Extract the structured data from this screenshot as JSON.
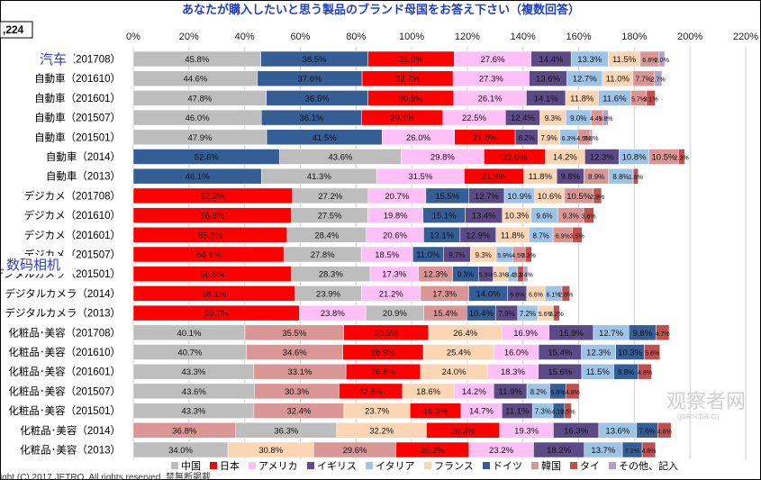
{
  "header": {
    "edge_label": ",224"
  },
  "chart_data": {
    "type": "bar",
    "orientation": "horizontal-stacked",
    "title": "あなたが購入したいと思う製品のブランド母国をお答え下さい（複数回答）",
    "xlim": [
      0,
      220
    ],
    "xticks": [
      "0%",
      "20%",
      "40%",
      "60%",
      "80%",
      "100%",
      "120%",
      "140%",
      "160%",
      "180%",
      "200%",
      "220%"
    ],
    "xtick_values": [
      0,
      20,
      40,
      60,
      80,
      100,
      120,
      140,
      160,
      180,
      200,
      220
    ],
    "grid": true,
    "legend_position": "bottom",
    "series": [
      {
        "name": "中国",
        "color": "#bdbdbd"
      },
      {
        "name": "日本",
        "color": "#ff0000"
      },
      {
        "name": "アメリカ",
        "color": "#ffbff7"
      },
      {
        "name": "イギリス",
        "color": "#5c4a86"
      },
      {
        "name": "イタリア",
        "color": "#9dc3e6"
      },
      {
        "name": "フランス",
        "color": "#fcd5b4"
      },
      {
        "name": "ドイツ",
        "color": "#355e96"
      },
      {
        "name": "韓国",
        "color": "#d99694"
      },
      {
        "name": "タイ",
        "color": "#c0504d"
      },
      {
        "name": "その他、記入",
        "color": "#b3a2c7"
      }
    ],
    "rows": [
      {
        "label": "汽车（201708）",
        "segments": [
          [
            "中国",
            45.8
          ],
          [
            "ドイツ",
            38.5
          ],
          [
            "日本",
            31.0
          ],
          [
            "アメリカ",
            27.6
          ],
          [
            "イギリス",
            14.4
          ],
          [
            "イタリア",
            13.3
          ],
          [
            "フランス",
            11.5
          ],
          [
            "韓国",
            6.8
          ],
          [
            "その他、記入",
            2.0
          ]
        ]
      },
      {
        "label": "自動車（201610）",
        "segments": [
          [
            "中国",
            44.6
          ],
          [
            "ドイツ",
            37.6
          ],
          [
            "日本",
            32.7
          ],
          [
            "アメリカ",
            27.3
          ],
          [
            "イギリス",
            13.6
          ],
          [
            "イタリア",
            12.7
          ],
          [
            "フランス",
            11.0
          ],
          [
            "韓国",
            7.7
          ],
          [
            "その他、記入",
            2.7
          ]
        ]
      },
      {
        "label": "自動車（201601）",
        "segments": [
          [
            "中国",
            47.8
          ],
          [
            "ドイツ",
            36.5
          ],
          [
            "日本",
            30.8
          ],
          [
            "アメリカ",
            26.1
          ],
          [
            "イギリス",
            14.1
          ],
          [
            "フランス",
            11.8
          ],
          [
            "イタリア",
            11.6
          ],
          [
            "韓国",
            5.7
          ],
          [
            "タイ",
            3.1
          ]
        ]
      },
      {
        "label": "自動車（201507）",
        "segments": [
          [
            "中国",
            46.0
          ],
          [
            "ドイツ",
            36.1
          ],
          [
            "日本",
            29.1
          ],
          [
            "アメリカ",
            22.5
          ],
          [
            "イギリス",
            12.4
          ],
          [
            "フランス",
            9.3
          ],
          [
            "イタリア",
            9.0
          ],
          [
            "韓国",
            4.4
          ],
          [
            "その他、記入",
            1.8
          ]
        ]
      },
      {
        "label": "自動車（201501）",
        "segments": [
          [
            "中国",
            47.9
          ],
          [
            "ドイツ",
            41.5
          ],
          [
            "アメリカ",
            26.0
          ],
          [
            "日本",
            21.8
          ],
          [
            "イギリス",
            8.2
          ],
          [
            "フランス",
            7.9
          ],
          [
            "イタリア",
            6.3
          ],
          [
            "韓国",
            4.5
          ],
          [
            "その他、記入",
            0.8
          ]
        ]
      },
      {
        "label": "自動車（2014）",
        "segments": [
          [
            "ドイツ",
            52.6
          ],
          [
            "中国",
            43.6
          ],
          [
            "アメリカ",
            29.8
          ],
          [
            "日本",
            22.0
          ],
          [
            "フランス",
            14.2
          ],
          [
            "イギリス",
            12.3
          ],
          [
            "イタリア",
            10.8
          ],
          [
            "韓国",
            10.5
          ],
          [
            "タイ",
            2.3
          ]
        ]
      },
      {
        "label": "自動車（2013）",
        "segments": [
          [
            "ドイツ",
            46.1
          ],
          [
            "中国",
            41.3
          ],
          [
            "アメリカ",
            31.5
          ],
          [
            "日本",
            21.4
          ],
          [
            "フランス",
            11.8
          ],
          [
            "イギリス",
            9.8
          ],
          [
            "韓国",
            8.9
          ],
          [
            "イタリア",
            8.8
          ],
          [
            "タイ",
            1.8
          ]
        ]
      },
      {
        "label": "デジカメ（201708）",
        "segments": [
          [
            "日本",
            57.2
          ],
          [
            "中国",
            27.2
          ],
          [
            "アメリカ",
            20.7
          ],
          [
            "ドイツ",
            15.5
          ],
          [
            "イギリス",
            12.7
          ],
          [
            "イタリア",
            10.9
          ],
          [
            "フランス",
            10.6
          ],
          [
            "韓国",
            10.5
          ],
          [
            "タイ",
            2.9
          ]
        ]
      },
      {
        "label": "デジカメ（201610）",
        "segments": [
          [
            "日本",
            56.8
          ],
          [
            "中国",
            27.5
          ],
          [
            "アメリカ",
            19.8
          ],
          [
            "ドイツ",
            15.1
          ],
          [
            "イギリス",
            13.4
          ],
          [
            "フランス",
            10.3
          ],
          [
            "イタリア",
            9.6
          ],
          [
            "韓国",
            9.3
          ],
          [
            "タイ",
            3.6
          ]
        ]
      },
      {
        "label": "デジカメ（201601）",
        "segments": [
          [
            "日本",
            55.3
          ],
          [
            "中国",
            28.4
          ],
          [
            "アメリカ",
            20.6
          ],
          [
            "ドイツ",
            13.1
          ],
          [
            "イギリス",
            12.9
          ],
          [
            "フランス",
            11.8
          ],
          [
            "イタリア",
            8.7
          ],
          [
            "韓国",
            6.9
          ],
          [
            "タイ",
            3.5
          ]
        ]
      },
      {
        "label": "デジカメ（201507）",
        "segments": [
          [
            "日本",
            54.1
          ],
          [
            "中国",
            27.8
          ],
          [
            "アメリカ",
            18.5
          ],
          [
            "ドイツ",
            11.0
          ],
          [
            "イギリス",
            9.7
          ],
          [
            "フランス",
            9.3
          ],
          [
            "イタリア",
            5.9
          ],
          [
            "韓国",
            4.5
          ],
          [
            "タイ",
            2.3
          ]
        ]
      },
      {
        "label": "デジタルカメラ（201501）",
        "segments": [
          [
            "日本",
            56.8
          ],
          [
            "中国",
            28.3
          ],
          [
            "アメリカ",
            17.3
          ],
          [
            "韓国",
            12.3
          ],
          [
            "ドイツ",
            9.3
          ],
          [
            "イギリス",
            5.3
          ],
          [
            "フランス",
            5.3
          ],
          [
            "イタリア",
            3.4
          ],
          [
            "タイ",
            2.3
          ],
          [
            "その他、記入",
            1.4
          ]
        ]
      },
      {
        "label": "デジタルカメラ（2014）",
        "segments": [
          [
            "日本",
            58.1
          ],
          [
            "中国",
            23.9
          ],
          [
            "アメリカ",
            21.2
          ],
          [
            "韓国",
            17.3
          ],
          [
            "ドイツ",
            14.0
          ],
          [
            "イギリス",
            6.8
          ],
          [
            "フランス",
            6.6
          ],
          [
            "イタリア",
            6.1
          ],
          [
            "タイ",
            2.8
          ]
        ]
      },
      {
        "label": "デジタルカメラ（2013）",
        "segments": [
          [
            "日本",
            59.7
          ],
          [
            "アメリカ",
            23.8
          ],
          [
            "中国",
            20.9
          ],
          [
            "韓国",
            15.4
          ],
          [
            "ドイツ",
            10.4
          ],
          [
            "イギリス",
            7.9
          ],
          [
            "イタリア",
            7.2
          ],
          [
            "フランス",
            5.6
          ],
          [
            "タイ",
            2.2
          ]
        ]
      },
      {
        "label": "化粧品･美容（201708）",
        "segments": [
          [
            "中国",
            40.1
          ],
          [
            "韓国",
            35.5
          ],
          [
            "日本",
            30.5
          ],
          [
            "フランス",
            26.4
          ],
          [
            "アメリカ",
            16.9
          ],
          [
            "イギリス",
            15.9
          ],
          [
            "イタリア",
            12.7
          ],
          [
            "ドイツ",
            9.8
          ],
          [
            "タイ",
            4.7
          ]
        ]
      },
      {
        "label": "化粧品･美容（201610）",
        "segments": [
          [
            "中国",
            40.7
          ],
          [
            "韓国",
            34.6
          ],
          [
            "日本",
            28.9
          ],
          [
            "フランス",
            25.4
          ],
          [
            "アメリカ",
            16.0
          ],
          [
            "イギリス",
            15.4
          ],
          [
            "イタリア",
            12.3
          ],
          [
            "ドイツ",
            10.3
          ],
          [
            "タイ",
            5.6
          ]
        ]
      },
      {
        "label": "化粧品･美容（201601）",
        "segments": [
          [
            "中国",
            43.3
          ],
          [
            "韓国",
            33.1
          ],
          [
            "日本",
            26.8
          ],
          [
            "フランス",
            24.0
          ],
          [
            "アメリカ",
            18.3
          ],
          [
            "イギリス",
            15.6
          ],
          [
            "イタリア",
            11.5
          ],
          [
            "ドイツ",
            8.8
          ],
          [
            "タイ",
            4.8
          ]
        ]
      },
      {
        "label": "化粧品･美容（201507）",
        "segments": [
          [
            "中国",
            43.6
          ],
          [
            "韓国",
            30.3
          ],
          [
            "日本",
            22.8
          ],
          [
            "フランス",
            18.6
          ],
          [
            "アメリカ",
            14.2
          ],
          [
            "イギリス",
            11.9
          ],
          [
            "イタリア",
            8.2
          ],
          [
            "ドイツ",
            5.8
          ],
          [
            "タイ",
            4.8
          ]
        ]
      },
      {
        "label": "化粧品･美容（201501）",
        "segments": [
          [
            "中国",
            43.3
          ],
          [
            "韓国",
            32.4
          ],
          [
            "フランス",
            23.7
          ],
          [
            "日本",
            18.3
          ],
          [
            "アメリカ",
            14.7
          ],
          [
            "イギリス",
            11.1
          ],
          [
            "イタリア",
            7.3
          ],
          [
            "ドイツ",
            4.1
          ],
          [
            "タイ",
            2.5
          ]
        ]
      },
      {
        "label": "化粧品･美容（2014）",
        "segments": [
          [
            "韓国",
            36.8
          ],
          [
            "中国",
            36.3
          ],
          [
            "フランス",
            32.2
          ],
          [
            "日本",
            26.3
          ],
          [
            "アメリカ",
            19.3
          ],
          [
            "イギリス",
            16.3
          ],
          [
            "イタリア",
            13.6
          ],
          [
            "ドイツ",
            7.6
          ],
          [
            "タイ",
            4.8
          ]
        ]
      },
      {
        "label": "化粧品･美容（2013）",
        "segments": [
          [
            "中国",
            34.0
          ],
          [
            "フランス",
            30.8
          ],
          [
            "韓国",
            29.6
          ],
          [
            "日本",
            26.2
          ],
          [
            "アメリカ",
            23.2
          ],
          [
            "イギリス",
            18.2
          ],
          [
            "イタリア",
            13.7
          ],
          [
            "ドイツ",
            7.1
          ],
          [
            "タイ",
            4.8
          ]
        ]
      }
    ]
  },
  "annotations": [
    {
      "text": "汽车"
    },
    {
      "text": "数码相机"
    }
  ],
  "watermark": {
    "text": "观察者网",
    "sub": "guancha.cn"
  },
  "footer": {
    "copyright": "ight (C) 2017 JETRO. All rights reserved. 禁無断掲載"
  }
}
